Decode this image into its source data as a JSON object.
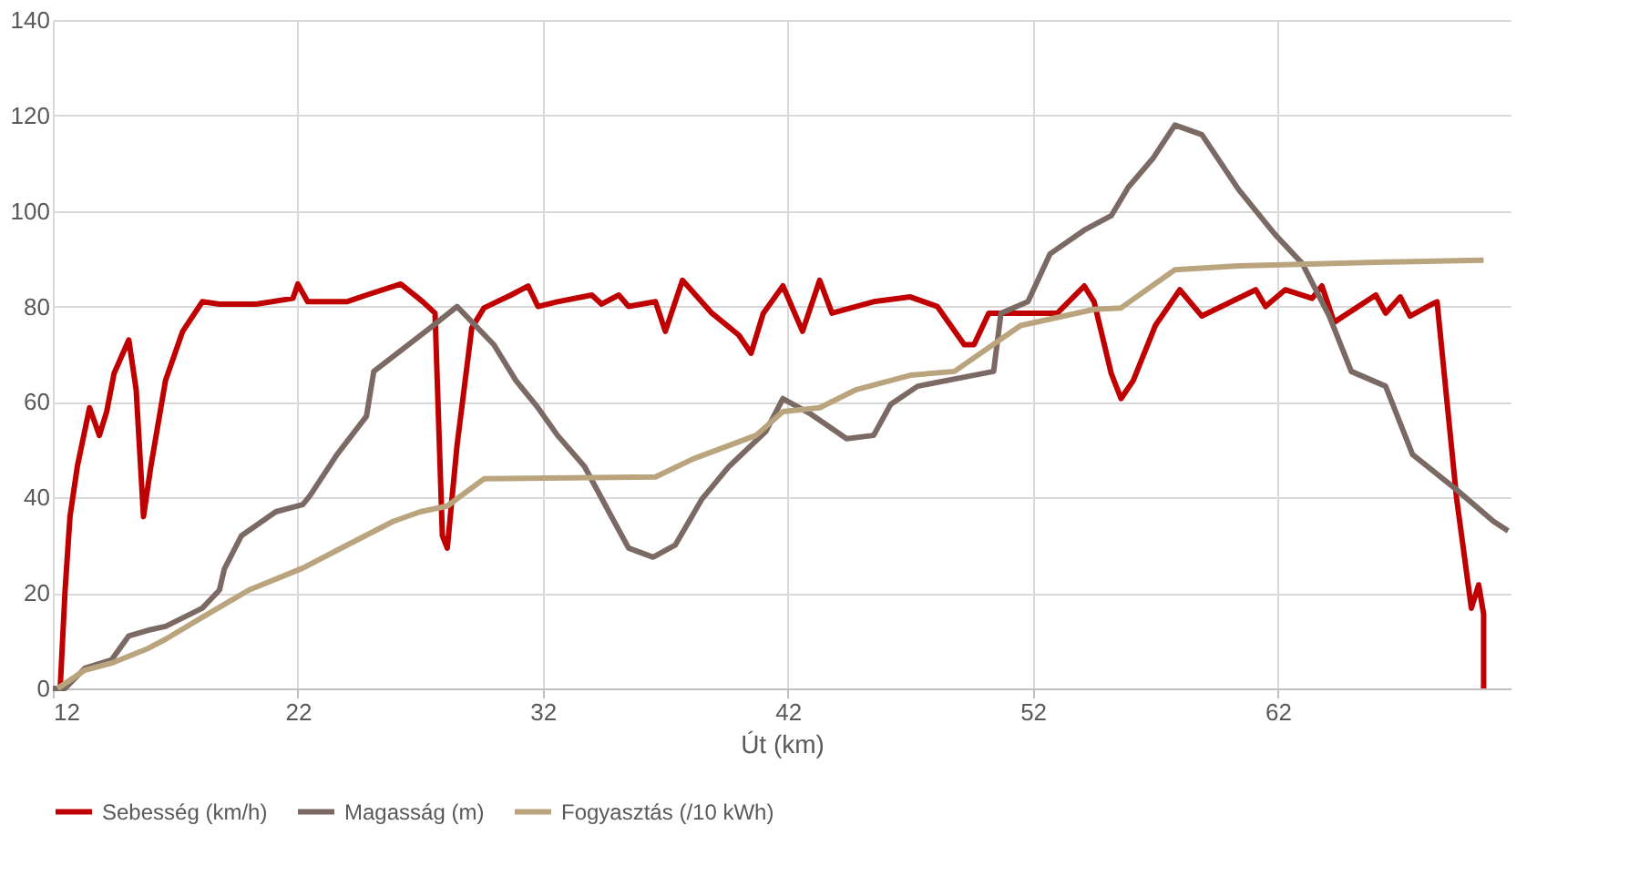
{
  "chart_data": {
    "type": "line",
    "xlabel": "Út (km)",
    "xlim": [
      12,
      71.5
    ],
    "xticks": [
      12,
      22,
      32,
      42,
      52,
      62
    ],
    "ylim": [
      0,
      140
    ],
    "yticks": [
      0,
      20,
      40,
      60,
      80,
      100,
      120,
      140
    ],
    "grid": true,
    "legend": "bottom",
    "marker": "none",
    "line_style": "solid",
    "series": [
      {
        "name": "Sebesség (km/h)",
        "color": "#c00000",
        "x": [
          12.3,
          12.5,
          12.7,
          13.0,
          13.5,
          13.9,
          14.2,
          14.5,
          15.1,
          15.4,
          15.7,
          16.0,
          16.6,
          17.3,
          18.1,
          18.8,
          20.3,
          21.8,
          22.0,
          22.4,
          24.0,
          24.8,
          26.2,
          27.1,
          27.6,
          27.9,
          28.1,
          28.5,
          29.1,
          29.6,
          30.7,
          31.4,
          31.8,
          32.6,
          34.0,
          34.4,
          35.1,
          35.5,
          36.6,
          37.0,
          37.7,
          38.9,
          40.0,
          40.5,
          41.0,
          41.8,
          42.6,
          43.3,
          43.8,
          45.5,
          47.0,
          48.1,
          49.2,
          49.6,
          50.2,
          51.5,
          53.0,
          54.1,
          54.5,
          55.2,
          55.6,
          56.1,
          57.0,
          58.0,
          58.9,
          61.1,
          61.5,
          62.3,
          63.4,
          63.8,
          64.3,
          66.0,
          66.4,
          67.0,
          67.4,
          68.3,
          68.5,
          69.3,
          69.9,
          70.2,
          70.4,
          70.4
        ],
        "values": [
          0,
          20.6,
          36,
          46.5,
          58.8,
          53,
          58,
          66,
          73,
          62.6,
          36,
          46.5,
          64.5,
          74.8,
          81,
          80.5,
          80.5,
          81.7,
          84.7,
          81,
          81,
          82.4,
          84.7,
          81,
          78.6,
          32,
          29.4,
          51,
          75.5,
          79.7,
          82.4,
          84.3,
          80,
          81,
          82.4,
          80.5,
          82.4,
          80,
          81,
          74.8,
          85.5,
          78.6,
          74,
          70.2,
          78.6,
          84.3,
          74.8,
          85.5,
          78.6,
          81,
          82,
          80,
          72,
          72,
          78.6,
          78.6,
          78.6,
          84.3,
          81,
          66,
          60.7,
          64.5,
          76,
          83.5,
          78,
          83.5,
          80,
          83.5,
          81.7,
          84.3,
          76.7,
          82.4,
          78.6,
          82,
          78,
          80.5,
          81,
          39.7,
          16.8,
          21.7,
          15.6,
          0
        ]
      },
      {
        "name": "Magasság (m)",
        "color": "#7b6a63",
        "x": [
          12,
          12.5,
          13.3,
          14.4,
          15.1,
          15.9,
          16.6,
          18.1,
          18.8,
          19.0,
          19.7,
          21.1,
          22.2,
          22.5,
          23.6,
          24.8,
          25.1,
          27.4,
          28.5,
          30.0,
          30.9,
          31.8,
          32.6,
          33.7,
          34.8,
          35.5,
          36.5,
          37.4,
          38.5,
          39.6,
          41.1,
          41.8,
          42.9,
          44.4,
          45.5,
          46.2,
          47.3,
          49.2,
          50.4,
          50.7,
          51.8,
          52.7,
          54.1,
          55.2,
          55.9,
          56.9,
          57.8,
          58.9,
          60.4,
          61.9,
          63.0,
          64.1,
          65.0,
          66.4,
          67.5,
          69.3,
          70.8,
          71.4
        ],
        "values": [
          0,
          0,
          4.2,
          6,
          11,
          12.2,
          13,
          16.8,
          20.6,
          25,
          32,
          37,
          38.5,
          40.4,
          49,
          57,
          66.4,
          75.5,
          80,
          72,
          64.5,
          58.8,
          53,
          46.5,
          36,
          29.4,
          27.5,
          30,
          39.7,
          46.5,
          53.8,
          60.7,
          57.6,
          52.3,
          53,
          59.5,
          63.3,
          65.2,
          66.4,
          78.6,
          81,
          91,
          96,
          99,
          105,
          111,
          118,
          116,
          104.5,
          95,
          89,
          78,
          66.4,
          63.3,
          49,
          41.6,
          35,
          33
        ]
      },
      {
        "name": "Fogyasztás (/10 kWh)",
        "color": "#b9a47e",
        "x": [
          12.2,
          13.3,
          14.4,
          15.9,
          16.6,
          18.1,
          20.0,
          22.2,
          24.0,
          25.9,
          27.0,
          28.1,
          29.6,
          36.6,
          38.1,
          40.7,
          41.8,
          43.3,
          44.8,
          47.0,
          48.8,
          51.5,
          54.5,
          55.6,
          57.8,
          60.4,
          66.4,
          70.4
        ],
        "values": [
          0,
          3.8,
          5.3,
          8.4,
          10.3,
          14.9,
          20.6,
          25.2,
          30,
          35,
          37,
          38.2,
          43.9,
          44.3,
          48,
          53,
          58,
          58.8,
          62.6,
          65.6,
          66.4,
          76,
          79.4,
          79.7,
          87.7,
          88.5,
          89.3,
          89.7
        ]
      }
    ]
  }
}
